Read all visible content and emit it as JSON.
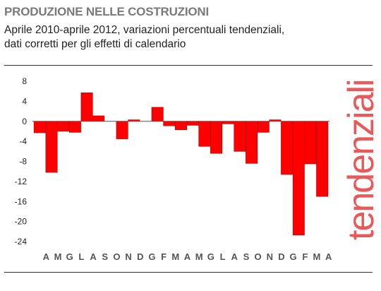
{
  "header": {
    "title": "PRODUZIONE NELLE COSTRUZIONI",
    "subtitle_line1": "Aprile 2010-aprile 2012, variazioni percentuali tendenziali,",
    "subtitle_line2": "dati corretti per gli effetti di calendario"
  },
  "side_label": "tendenziali",
  "colors": {
    "bar": "#ff0000",
    "bar_stroke": "#b00000",
    "side_label": "#e8595a",
    "title": "#7a7a7a"
  },
  "chart_data": {
    "type": "bar",
    "title": "PRODUZIONE NELLE COSTRUZIONI",
    "xlabel": "",
    "ylabel": "",
    "ylim": [
      -24,
      8
    ],
    "yticks": [
      8,
      4,
      0,
      -4,
      -8,
      -12,
      -16,
      -20,
      -24
    ],
    "grid": false,
    "categories": [
      "A",
      "M",
      "G",
      "L",
      "A",
      "S",
      "O",
      "N",
      "D",
      "G",
      "F",
      "M",
      "A",
      "M",
      "G",
      "L",
      "A",
      "S",
      "O",
      "N",
      "D",
      "G",
      "F",
      "M",
      "A"
    ],
    "values": [
      -2.3,
      -10.2,
      -2.0,
      -2.2,
      5.7,
      1.1,
      0.0,
      -3.5,
      0.3,
      0.0,
      2.8,
      -0.9,
      -1.7,
      -0.8,
      -5.0,
      -6.4,
      -0.5,
      -6.0,
      -8.4,
      -2.2,
      0.3,
      -10.6,
      -22.7,
      -8.5,
      -15.0
    ]
  }
}
